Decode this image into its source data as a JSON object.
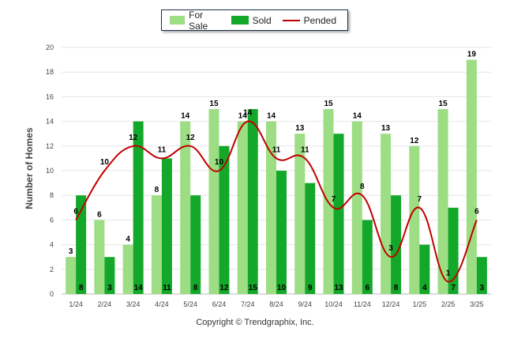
{
  "chart_data": {
    "type": "bar",
    "categories": [
      "1/24",
      "2/24",
      "3/24",
      "4/24",
      "5/24",
      "6/24",
      "7/24",
      "8/24",
      "9/24",
      "10/24",
      "11/24",
      "12/24",
      "1/25",
      "2/25",
      "3/25"
    ],
    "series": [
      {
        "name": "For Sale",
        "kind": "bar",
        "color": "#9ddd84",
        "values": [
          3,
          6,
          4,
          8,
          14,
          15,
          14,
          14,
          13,
          15,
          14,
          13,
          12,
          15,
          19
        ]
      },
      {
        "name": "Sold",
        "kind": "bar",
        "color": "#14a82a",
        "values": [
          8,
          3,
          14,
          11,
          8,
          12,
          15,
          10,
          9,
          13,
          6,
          8,
          4,
          7,
          3
        ]
      },
      {
        "name": "Pended",
        "kind": "line",
        "color": "#c00000",
        "values": [
          6,
          10,
          12,
          11,
          12,
          10,
          14,
          11,
          11,
          7,
          8,
          3,
          7,
          1,
          6
        ]
      }
    ],
    "ylabel": "Number of Homes",
    "ylim": [
      0,
      20
    ],
    "yticks": [
      0,
      2,
      4,
      6,
      8,
      10,
      12,
      14,
      16,
      18,
      20
    ],
    "grid": true,
    "legend_position": "top-center"
  },
  "legend": {
    "for_sale": "For Sale",
    "sold": "Sold",
    "pended": "Pended"
  },
  "footer": {
    "copyright": "Copyright © Trendgraphix, Inc."
  }
}
